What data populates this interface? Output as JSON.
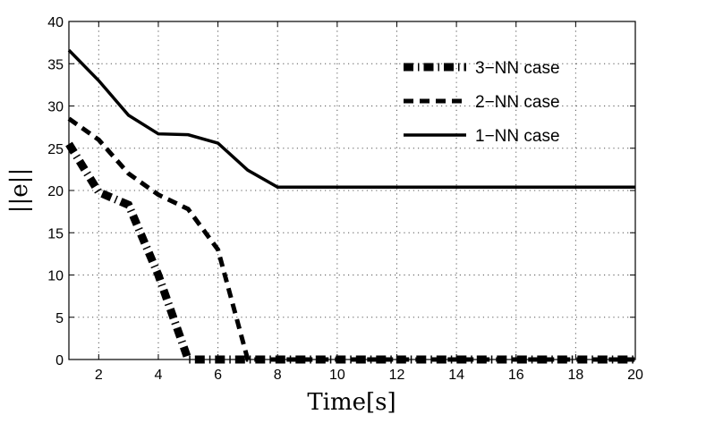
{
  "chart_data": {
    "type": "line",
    "xlabel": "Time[s]",
    "ylabel": "||e||",
    "xlim": [
      1,
      20
    ],
    "ylim": [
      0,
      40
    ],
    "xticks": [
      2,
      4,
      6,
      8,
      10,
      12,
      14,
      16,
      18,
      20
    ],
    "yticks": [
      0,
      5,
      10,
      15,
      20,
      25,
      30,
      35,
      40
    ],
    "grid": true,
    "legend_position": "top-right",
    "series": [
      {
        "name": "3−NN case",
        "style": "thick-dashdot",
        "color": "#000000",
        "x": [
          1,
          2,
          3,
          4,
          5,
          6,
          7,
          8,
          9,
          10,
          11,
          12,
          13,
          14,
          15,
          16,
          17,
          18,
          19,
          20
        ],
        "y": [
          25.5,
          19.8,
          18.3,
          10.0,
          0.0,
          0.0,
          0.0,
          0.0,
          0.0,
          0.0,
          0.0,
          0.0,
          0.0,
          0.0,
          0.0,
          0.0,
          0.0,
          0.0,
          0.0,
          0.0
        ]
      },
      {
        "name": "2−NN case",
        "style": "dashed",
        "color": "#000000",
        "x": [
          1,
          2,
          3,
          4,
          5,
          6,
          7,
          8,
          9,
          10,
          11,
          12,
          13,
          14,
          15,
          16,
          17,
          18,
          19,
          20
        ],
        "y": [
          28.5,
          26.0,
          22.0,
          19.5,
          17.8,
          13.0,
          0.0,
          0.0,
          0.0,
          0.0,
          0.0,
          0.0,
          0.0,
          0.0,
          0.0,
          0.0,
          0.0,
          0.0,
          0.0,
          0.0
        ]
      },
      {
        "name": "1−NN case",
        "style": "solid",
        "color": "#000000",
        "x": [
          1,
          2,
          3,
          4,
          5,
          6,
          7,
          8,
          9,
          10,
          11,
          12,
          13,
          14,
          15,
          16,
          17,
          18,
          19,
          20
        ],
        "y": [
          36.6,
          33.0,
          28.9,
          26.7,
          26.6,
          25.6,
          22.4,
          20.4,
          20.4,
          20.4,
          20.4,
          20.4,
          20.4,
          20.4,
          20.4,
          20.4,
          20.4,
          20.4,
          20.4,
          20.4
        ]
      }
    ]
  }
}
